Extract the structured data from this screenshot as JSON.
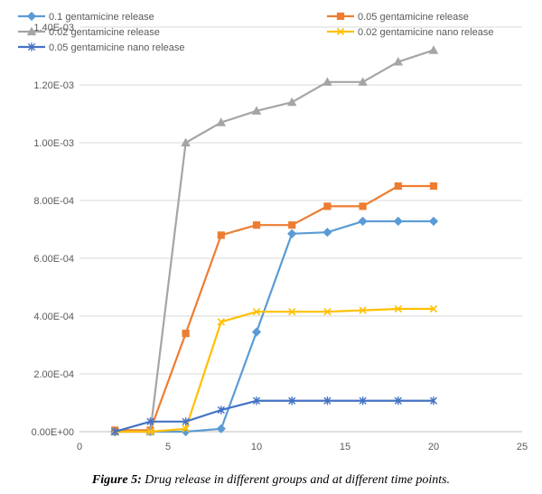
{
  "chart_data": {
    "type": "line",
    "title": "",
    "xlabel": "",
    "ylabel": "",
    "xlim": [
      0,
      25
    ],
    "ylim": [
      0,
      0.0014
    ],
    "x_ticks": [
      0,
      5,
      10,
      15,
      20,
      25
    ],
    "x_tick_labels": [
      "0",
      "5",
      "10",
      "15",
      "20",
      "25"
    ],
    "y_ticks": [
      0,
      0.0002,
      0.0004,
      0.0006,
      0.0008,
      0.001,
      0.0012,
      0.0014
    ],
    "y_tick_labels": [
      "0.00E+00",
      "2.00E-04",
      "4.00E-04",
      "6.00E-04",
      "8.00E-04",
      "1.00E-03",
      "1.20E-03",
      "1.40E-03"
    ],
    "grid": "horizontal",
    "legend_position": "top",
    "x": [
      2,
      4,
      6,
      8,
      10,
      12,
      14,
      16,
      18,
      20
    ],
    "series": [
      {
        "name": "0.1 gentamicine release",
        "color": "#5b9bd5",
        "marker": "diamond",
        "values": [
          0.0,
          0.0,
          0.0,
          1e-05,
          0.000345,
          0.000685,
          0.00069,
          0.000728,
          0.000728,
          0.000728
        ]
      },
      {
        "name": "0.05 gentamicine release",
        "color": "#ed7d31",
        "marker": "square",
        "values": [
          5e-06,
          5e-06,
          0.00034,
          0.00068,
          0.000715,
          0.000715,
          0.00078,
          0.00078,
          0.00085,
          0.00085
        ]
      },
      {
        "name": "0.02 gentamicine release",
        "color": "#a5a5a5",
        "marker": "triangle",
        "values": [
          0.0,
          0.0,
          0.001,
          0.00107,
          0.00111,
          0.00114,
          0.00121,
          0.00121,
          0.00128,
          0.00132
        ]
      },
      {
        "name": "0.02 gentamicine nano release",
        "color": "#ffc000",
        "marker": "x",
        "values": [
          0.0,
          0.0,
          1e-05,
          0.00038,
          0.000415,
          0.000415,
          0.000415,
          0.00042,
          0.000425,
          0.000425
        ]
      },
      {
        "name": "0.05 gentamicine nano release",
        "color": "#4472c4",
        "marker": "star",
        "values": [
          0.0,
          3.5e-05,
          3.5e-05,
          7.5e-05,
          0.000107,
          0.000107,
          0.000107,
          0.000107,
          0.000107,
          0.000107
        ]
      }
    ]
  },
  "caption": {
    "label": "Figure 5:",
    "text": " Drug release in different groups and at different time points."
  }
}
